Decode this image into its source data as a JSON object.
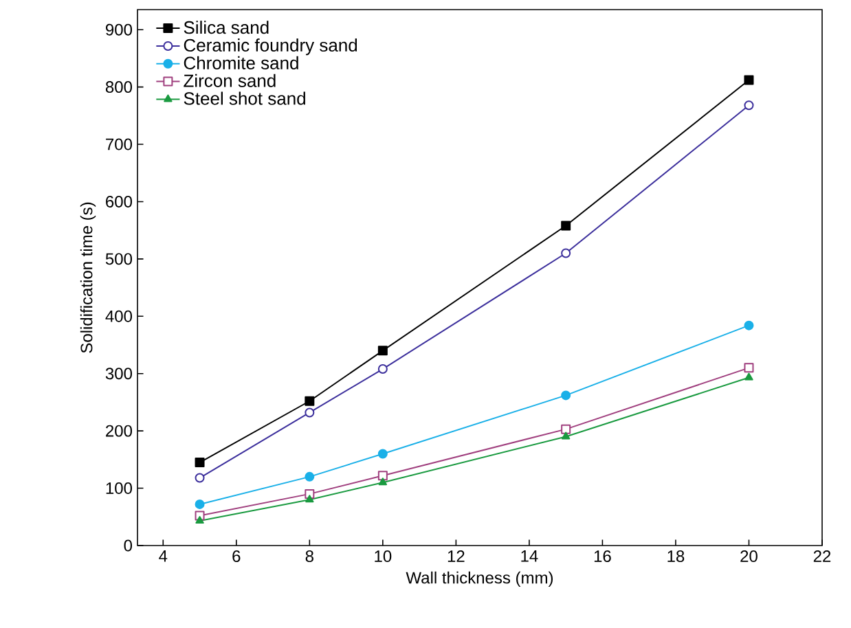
{
  "chart_data": {
    "type": "line",
    "xlabel": "Wall thickness (mm)",
    "ylabel": "Solidification time (s)",
    "x": [
      5,
      8,
      10,
      15,
      20
    ],
    "series": [
      {
        "name": "Silica sand",
        "color": "#000000",
        "marker": "square",
        "values": [
          145,
          252,
          340,
          558,
          812
        ]
      },
      {
        "name": "Ceramic foundry sand",
        "color": "#3c2f9c",
        "marker": "circle-open",
        "values": [
          118,
          232,
          308,
          510,
          768
        ]
      },
      {
        "name": "Chromite sand",
        "color": "#1ab0e8",
        "marker": "circle",
        "values": [
          72,
          120,
          160,
          262,
          384
        ]
      },
      {
        "name": "Zircon sand",
        "color": "#a0407f",
        "marker": "square-open",
        "values": [
          52,
          90,
          122,
          203,
          310
        ]
      },
      {
        "name": "Steel shot sand",
        "color": "#1a9a40",
        "marker": "triangle",
        "values": [
          43,
          80,
          110,
          190,
          293
        ]
      }
    ],
    "xlim": [
      3.3,
      22
    ],
    "ylim": [
      0,
      935
    ],
    "xticks": [
      4,
      6,
      8,
      10,
      12,
      14,
      16,
      18,
      20,
      22
    ],
    "yticks": [
      0,
      100,
      200,
      300,
      400,
      500,
      600,
      700,
      800,
      900
    ],
    "grid": false,
    "legend": "top left",
    "line_style": "solid"
  }
}
